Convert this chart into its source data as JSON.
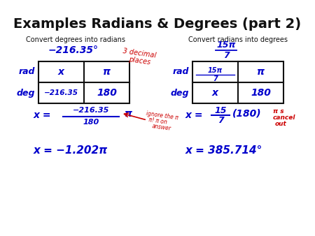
{
  "title": "Examples Radians & Degrees (part 2)",
  "title_fontsize": 14,
  "bg_color": "#ffffff",
  "left_subtitle": "Convert degrees into radians",
  "right_subtitle": "Convert radians into degrees",
  "blue": "#0000cc",
  "red": "#cc0000",
  "black": "#111111",
  "subtitle_fontsize": 7,
  "handwrite_fontsize": 9,
  "small_fontsize": 6.5
}
